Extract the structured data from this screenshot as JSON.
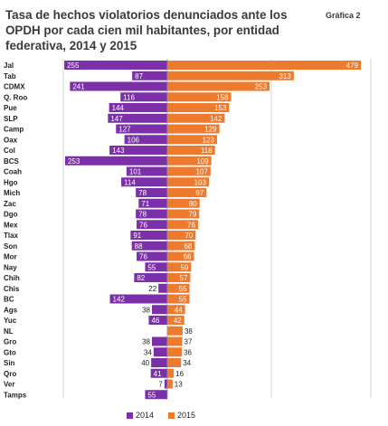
{
  "title": "Tasa de hechos violatorios denunciados ante los OPDH por cada cien mil habitantes, por entidad federativa, 2014 y 2015",
  "badge": "Gráfica 2",
  "colors": {
    "s2014": "#7b2fa8",
    "s2015": "#ee7a2d",
    "grid": "#cccccc"
  },
  "chart_data": {
    "type": "bar",
    "orientation": "horizontal-butterfly",
    "categories": [
      "Jal",
      "Tab",
      "CDMX",
      "Q. Roo",
      "Pue",
      "SLP",
      "Camp",
      "Oax",
      "Col",
      "BCS",
      "Coah",
      "Hgo",
      "Mich",
      "Zac",
      "Dgo",
      "Mex",
      "Tlax",
      "Son",
      "Mor",
      "Nay",
      "Chih",
      "Chis",
      "BC",
      "Ags",
      "Yuc",
      "NL",
      "Gro",
      "Gto",
      "Sin",
      "Qro",
      "Ver",
      "Tamps"
    ],
    "series": [
      {
        "name": "2014",
        "values": [
          255,
          87,
          241,
          116,
          144,
          147,
          127,
          106,
          143,
          253,
          101,
          114,
          78,
          71,
          78,
          76,
          91,
          88,
          76,
          55,
          82,
          22,
          142,
          38,
          46,
          null,
          38,
          34,
          40,
          41,
          7,
          55
        ]
      },
      {
        "name": "2015",
        "values": [
          479,
          313,
          253,
          158,
          153,
          142,
          129,
          123,
          118,
          109,
          107,
          103,
          97,
          80,
          79,
          76,
          70,
          68,
          66,
          59,
          57,
          55,
          55,
          44,
          42,
          38,
          37,
          36,
          34,
          16,
          13,
          null
        ]
      }
    ],
    "legend": [
      "2014",
      "2015"
    ],
    "legend_position": "bottom",
    "grid": true
  }
}
